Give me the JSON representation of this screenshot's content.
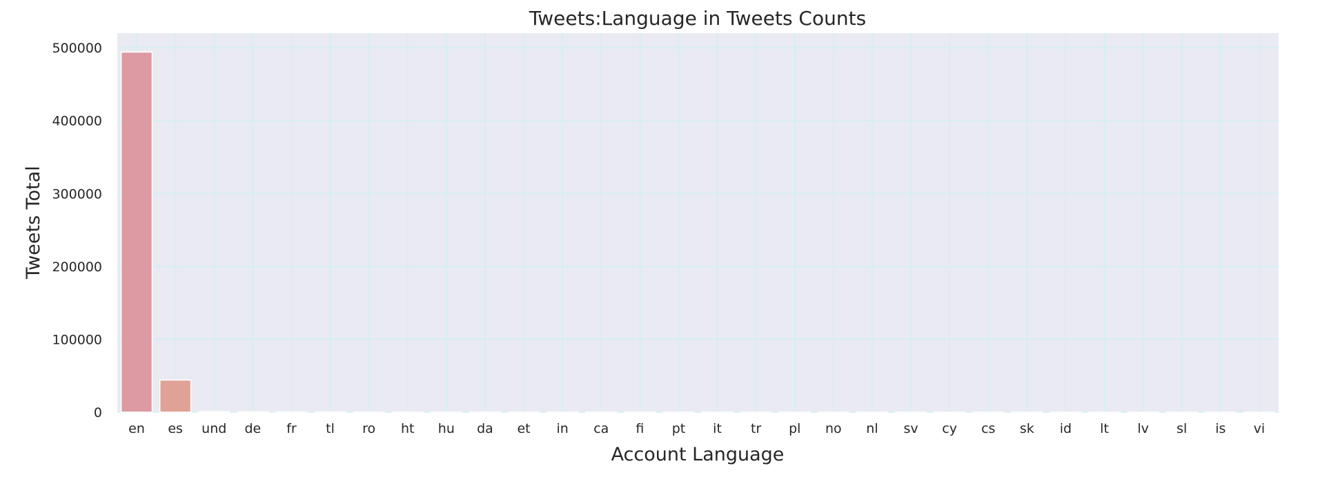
{
  "chart_data": {
    "type": "bar",
    "title": "Tweets:Language in Tweets Counts",
    "xlabel": "Account Language",
    "ylabel": "Tweets Total",
    "categories": [
      "en",
      "es",
      "und",
      "de",
      "fr",
      "tl",
      "ro",
      "ht",
      "hu",
      "da",
      "et",
      "in",
      "ca",
      "fi",
      "pt",
      "it",
      "tr",
      "pl",
      "no",
      "nl",
      "sv",
      "cy",
      "cs",
      "sk",
      "id",
      "lt",
      "lv",
      "sl",
      "is",
      "vi"
    ],
    "values": [
      494000,
      44000,
      800,
      450,
      300,
      250,
      200,
      180,
      150,
      120,
      100,
      90,
      80,
      70,
      60,
      50,
      45,
      40,
      35,
      30,
      25,
      20,
      18,
      15,
      12,
      10,
      8,
      6,
      4,
      2
    ],
    "ylim": [
      0,
      520000
    ],
    "yticks": [
      0,
      100000,
      200000,
      300000,
      400000,
      500000
    ],
    "ytick_labels": [
      "0",
      "100000",
      "200000",
      "300000",
      "400000",
      "500000"
    ],
    "grid": true,
    "colors": {
      "plot_background": "#e9eaf2",
      "grid": "#d2f0f0",
      "text": "#262626",
      "bar_palette": [
        "#dd9aa3",
        "#e0a196",
        "#e2a68c",
        "#d9ab84",
        "#ccb07e",
        "#bdb47a",
        "#aab97a",
        "#96bd80",
        "#84bf8a",
        "#77c096",
        "#70c0a3",
        "#6fc0b0",
        "#72bfbd",
        "#7bbdc8",
        "#86bad3",
        "#93b6dc",
        "#a2b1e2",
        "#b1ace6",
        "#bfa7e6",
        "#cba3e2",
        "#d5a0db",
        "#dc9dd1",
        "#e09bc5",
        "#e29ab9",
        "#e19aae",
        "#de9aa6",
        "#dc9aa2",
        "#da9aa0",
        "#d99aa0",
        "#d89aa0"
      ]
    }
  }
}
